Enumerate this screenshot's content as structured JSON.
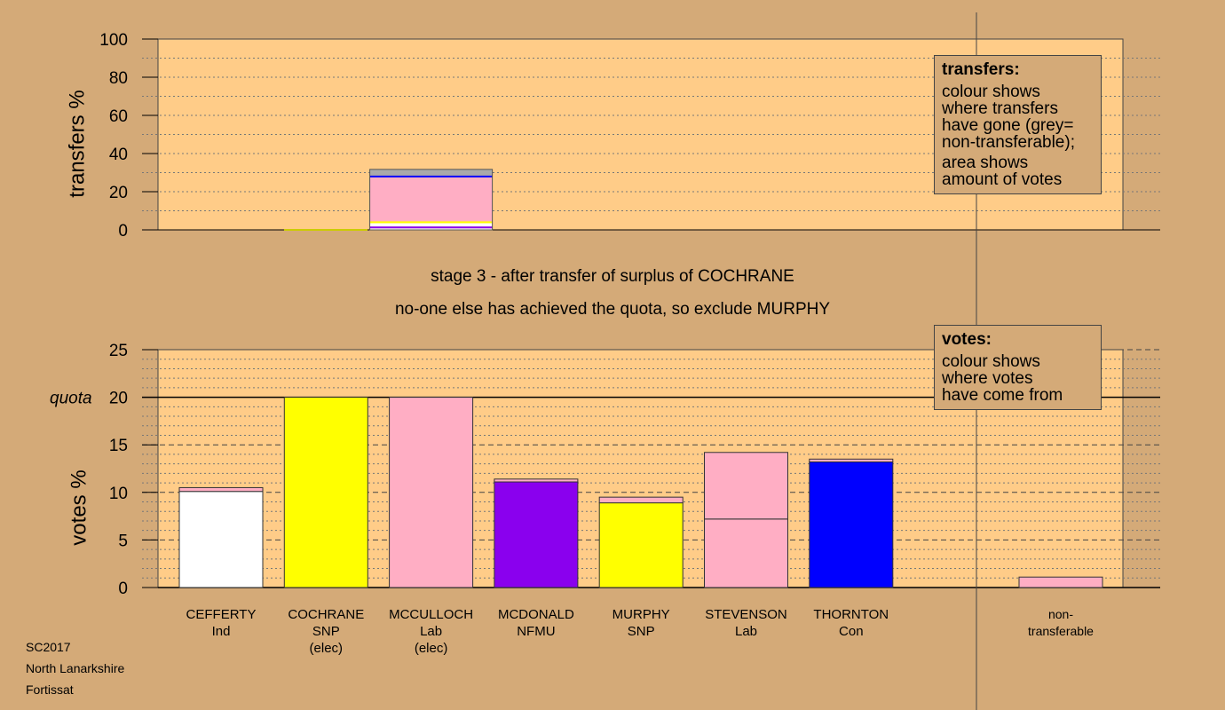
{
  "chart_data": [
    {
      "type": "bar",
      "panel": "transfers",
      "ylabel": "transfers %",
      "ylim": [
        0,
        100
      ],
      "yticks": [
        0,
        20,
        40,
        60,
        80,
        100
      ],
      "bars": [
        {
          "category": "COCHRANE",
          "segments": [
            {
              "value": 0.8,
              "color": "#ffffff"
            },
            {
              "value": 1.0,
              "color": "#8a00ee"
            },
            {
              "value": 1.7,
              "color": "#ffffff"
            },
            {
              "value": 1.0,
              "color": "#ffff00"
            },
            {
              "value": 23.0,
              "color": "#ffaec4"
            },
            {
              "value": 1.0,
              "color": "#0000ff"
            },
            {
              "value": 3.2,
              "color": "#aaaaaa"
            }
          ]
        }
      ],
      "legend": {
        "title": "transfers:",
        "lines": [
          "colour shows\nwhere transfers\nhave gone (grey=\nnon-transferable);",
          "area shows\namount of votes"
        ]
      }
    },
    {
      "type": "bar",
      "panel": "votes",
      "ylabel": "votes %",
      "ylim": [
        0,
        25
      ],
      "yticks": [
        0,
        5,
        10,
        15,
        20,
        25
      ],
      "quota": 20,
      "quota_label": "quota",
      "categories": [
        {
          "label": "CEFFERTY\nInd",
          "segments": [
            {
              "value": 10.1,
              "color": "#ffffff"
            },
            {
              "value": 0.4,
              "color": "#ffaec4"
            }
          ]
        },
        {
          "label": "COCHRANE\nSNP\n(elec)",
          "segments": [
            {
              "value": 20.0,
              "color": "#ffff00"
            }
          ]
        },
        {
          "label": "MCCULLOCH\nLab\n(elec)",
          "segments": [
            {
              "value": 20.0,
              "color": "#ffaec4"
            }
          ]
        },
        {
          "label": "MCDONALD\nNFMU",
          "segments": [
            {
              "value": 11.1,
              "color": "#8a00ee"
            },
            {
              "value": 0.3,
              "color": "#ffaec4"
            }
          ]
        },
        {
          "label": "MURPHY\nSNP",
          "segments": [
            {
              "value": 8.9,
              "color": "#ffff00"
            },
            {
              "value": 0.6,
              "color": "#ffaec4"
            }
          ]
        },
        {
          "label": "STEVENSON\nLab",
          "segments": [
            {
              "value": 7.2,
              "color": "#ffaec4"
            },
            {
              "value": 7.0,
              "color": "#ffaec4"
            }
          ]
        },
        {
          "label": "THORNTON\nCon",
          "segments": [
            {
              "value": 13.2,
              "color": "#0000ff"
            },
            {
              "value": 0.3,
              "color": "#ffaec4"
            }
          ]
        },
        {
          "label": "non-\ntransferable",
          "segments": [
            {
              "value": 1.1,
              "color": "#ffaec4"
            }
          ]
        }
      ],
      "legend": {
        "title": "votes:",
        "lines": [
          "colour shows\nwhere votes\nhave come from"
        ]
      }
    }
  ],
  "stage": {
    "line1": "stage 3 - after transfer of surplus of COCHRANE",
    "line2": "no-one else has achieved the quota, so exclude MURPHY"
  },
  "corner": {
    "line1": "SC2017",
    "line2": "North Lanarkshire",
    "line3": "Fortissat"
  },
  "colors": {
    "background": "#d4aa78",
    "plot": "#ffcc88"
  }
}
